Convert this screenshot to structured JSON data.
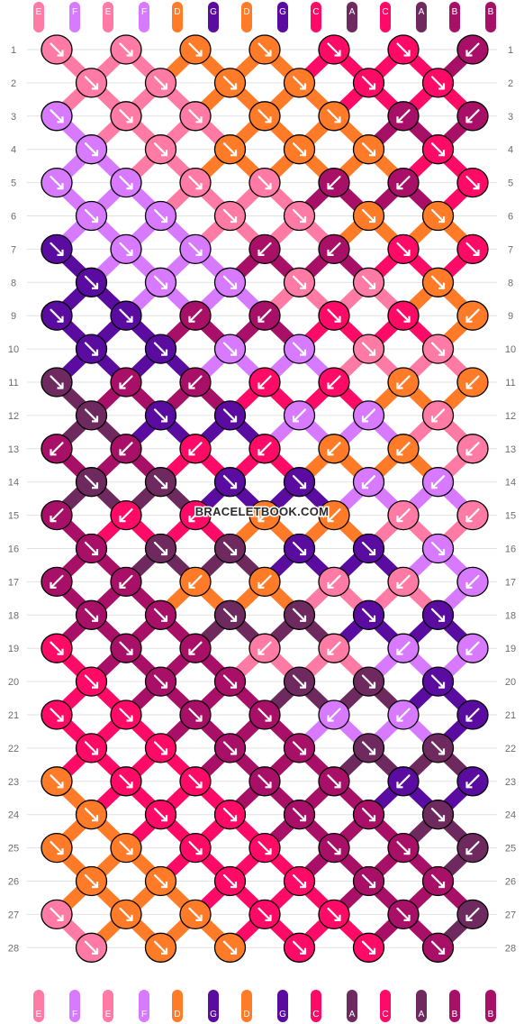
{
  "watermark": "BRACELETBOOK.COM",
  "strands": {
    "top_labels": [
      "E",
      "F",
      "E",
      "F",
      "D",
      "G",
      "D",
      "G",
      "C",
      "A",
      "C",
      "A",
      "B",
      "B"
    ],
    "bottom_labels": [
      "E",
      "F",
      "E",
      "F",
      "D",
      "G",
      "D",
      "G",
      "C",
      "A",
      "C",
      "A",
      "B",
      "B"
    ]
  },
  "colors": {
    "A": "#6e2a5e",
    "B": "#a80f66",
    "C": "#ff0a66",
    "D": "#ff7b28",
    "E": "#ff7aa5",
    "F": "#d87aff",
    "G": "#5a0ba0"
  },
  "row_numbers": [
    "1",
    "2",
    "3",
    "4",
    "5",
    "6",
    "7",
    "8",
    "9",
    "10",
    "11",
    "12",
    "13",
    "14",
    "15",
    "16",
    "17",
    "18",
    "19",
    "20",
    "21",
    "22",
    "23",
    "24",
    "25",
    "26",
    "27",
    "28"
  ],
  "knot_rows": [
    {
      "color": [
        "E",
        "E",
        "D",
        "D",
        "C",
        "C",
        "B"
      ],
      "dir": [
        "r",
        "r",
        "r",
        "r",
        "r",
        "r",
        "l"
      ]
    },
    {
      "color": [
        "E",
        "E",
        "D",
        "D",
        "C",
        "C"
      ],
      "dir": [
        "r",
        "r",
        "r",
        "r",
        "r",
        "r"
      ]
    },
    {
      "color": [
        "F",
        "E",
        "E",
        "D",
        "D",
        "B",
        "B"
      ],
      "dir": [
        "r",
        "r",
        "r",
        "r",
        "r",
        "l",
        "l"
      ]
    },
    {
      "color": [
        "F",
        "E",
        "D",
        "D",
        "D",
        "C"
      ],
      "dir": [
        "r",
        "r",
        "r",
        "r",
        "r",
        "r"
      ]
    },
    {
      "color": [
        "F",
        "F",
        "E",
        "E",
        "B",
        "B",
        "C"
      ],
      "dir": [
        "r",
        "r",
        "r",
        "r",
        "l",
        "l",
        "r"
      ]
    },
    {
      "color": [
        "F",
        "F",
        "E",
        "E",
        "D",
        "D"
      ],
      "dir": [
        "r",
        "r",
        "r",
        "r",
        "r",
        "r"
      ]
    },
    {
      "color": [
        "G",
        "F",
        "F",
        "B",
        "B",
        "C",
        "C"
      ],
      "dir": [
        "r",
        "r",
        "r",
        "l",
        "l",
        "r",
        "r"
      ]
    },
    {
      "color": [
        "G",
        "F",
        "F",
        "E",
        "E",
        "D"
      ],
      "dir": [
        "r",
        "r",
        "r",
        "r",
        "r",
        "r"
      ]
    },
    {
      "color": [
        "G",
        "G",
        "B",
        "B",
        "C",
        "C",
        "D"
      ],
      "dir": [
        "r",
        "r",
        "l",
        "l",
        "r",
        "r",
        "l"
      ]
    },
    {
      "color": [
        "G",
        "G",
        "F",
        "F",
        "E",
        "E"
      ],
      "dir": [
        "r",
        "r",
        "r",
        "r",
        "r",
        "r"
      ]
    },
    {
      "color": [
        "A",
        "B",
        "B",
        "C",
        "C",
        "D",
        "D"
      ],
      "dir": [
        "r",
        "l",
        "l",
        "l",
        "l",
        "l",
        "l"
      ]
    },
    {
      "color": [
        "A",
        "G",
        "G",
        "F",
        "F",
        "E"
      ],
      "dir": [
        "r",
        "r",
        "r",
        "l",
        "l",
        "l"
      ]
    },
    {
      "color": [
        "B",
        "B",
        "C",
        "C",
        "D",
        "D",
        "E"
      ],
      "dir": [
        "l",
        "l",
        "l",
        "l",
        "l",
        "l",
        "l"
      ]
    },
    {
      "color": [
        "A",
        "A",
        "G",
        "G",
        "F",
        "F"
      ],
      "dir": [
        "r",
        "r",
        "r",
        "r",
        "l",
        "l"
      ]
    },
    {
      "color": [
        "B",
        "C",
        "C",
        "D",
        "D",
        "E",
        "E"
      ],
      "dir": [
        "l",
        "l",
        "l",
        "l",
        "l",
        "l",
        "l"
      ]
    },
    {
      "color": [
        "B",
        "A",
        "A",
        "G",
        "G",
        "F"
      ],
      "dir": [
        "r",
        "r",
        "r",
        "r",
        "r",
        "r"
      ]
    },
    {
      "color": [
        "B",
        "B",
        "D",
        "D",
        "E",
        "E",
        "F"
      ],
      "dir": [
        "l",
        "l",
        "l",
        "l",
        "l",
        "l",
        "l"
      ]
    },
    {
      "color": [
        "B",
        "B",
        "A",
        "A",
        "G",
        "G"
      ],
      "dir": [
        "r",
        "r",
        "r",
        "r",
        "r",
        "r"
      ]
    },
    {
      "color": [
        "C",
        "B",
        "B",
        "E",
        "E",
        "F",
        "F"
      ],
      "dir": [
        "r",
        "r",
        "l",
        "l",
        "l",
        "l",
        "l"
      ]
    },
    {
      "color": [
        "C",
        "B",
        "B",
        "A",
        "A",
        "G"
      ],
      "dir": [
        "r",
        "r",
        "r",
        "r",
        "r",
        "r"
      ]
    },
    {
      "color": [
        "C",
        "C",
        "B",
        "B",
        "F",
        "F",
        "G"
      ],
      "dir": [
        "r",
        "r",
        "r",
        "r",
        "l",
        "l",
        "l"
      ]
    },
    {
      "color": [
        "C",
        "C",
        "B",
        "B",
        "A",
        "A"
      ],
      "dir": [
        "r",
        "r",
        "r",
        "r",
        "r",
        "r"
      ]
    },
    {
      "color": [
        "D",
        "C",
        "C",
        "B",
        "B",
        "G",
        "G"
      ],
      "dir": [
        "r",
        "r",
        "r",
        "r",
        "r",
        "l",
        "l"
      ]
    },
    {
      "color": [
        "D",
        "C",
        "C",
        "B",
        "B",
        "A"
      ],
      "dir": [
        "r",
        "r",
        "r",
        "r",
        "r",
        "r"
      ]
    },
    {
      "color": [
        "D",
        "D",
        "C",
        "C",
        "B",
        "B",
        "A"
      ],
      "dir": [
        "r",
        "r",
        "r",
        "r",
        "r",
        "r",
        "l"
      ]
    },
    {
      "color": [
        "D",
        "D",
        "C",
        "C",
        "B",
        "B"
      ],
      "dir": [
        "r",
        "r",
        "r",
        "r",
        "r",
        "r"
      ]
    },
    {
      "color": [
        "E",
        "D",
        "D",
        "C",
        "C",
        "B",
        "A"
      ],
      "dir": [
        "r",
        "r",
        "r",
        "r",
        "r",
        "r",
        "l"
      ]
    },
    {
      "color": [
        "E",
        "D",
        "D",
        "C",
        "C",
        "B"
      ],
      "dir": [
        "r",
        "r",
        "r",
        "r",
        "r",
        "r"
      ]
    }
  ]
}
